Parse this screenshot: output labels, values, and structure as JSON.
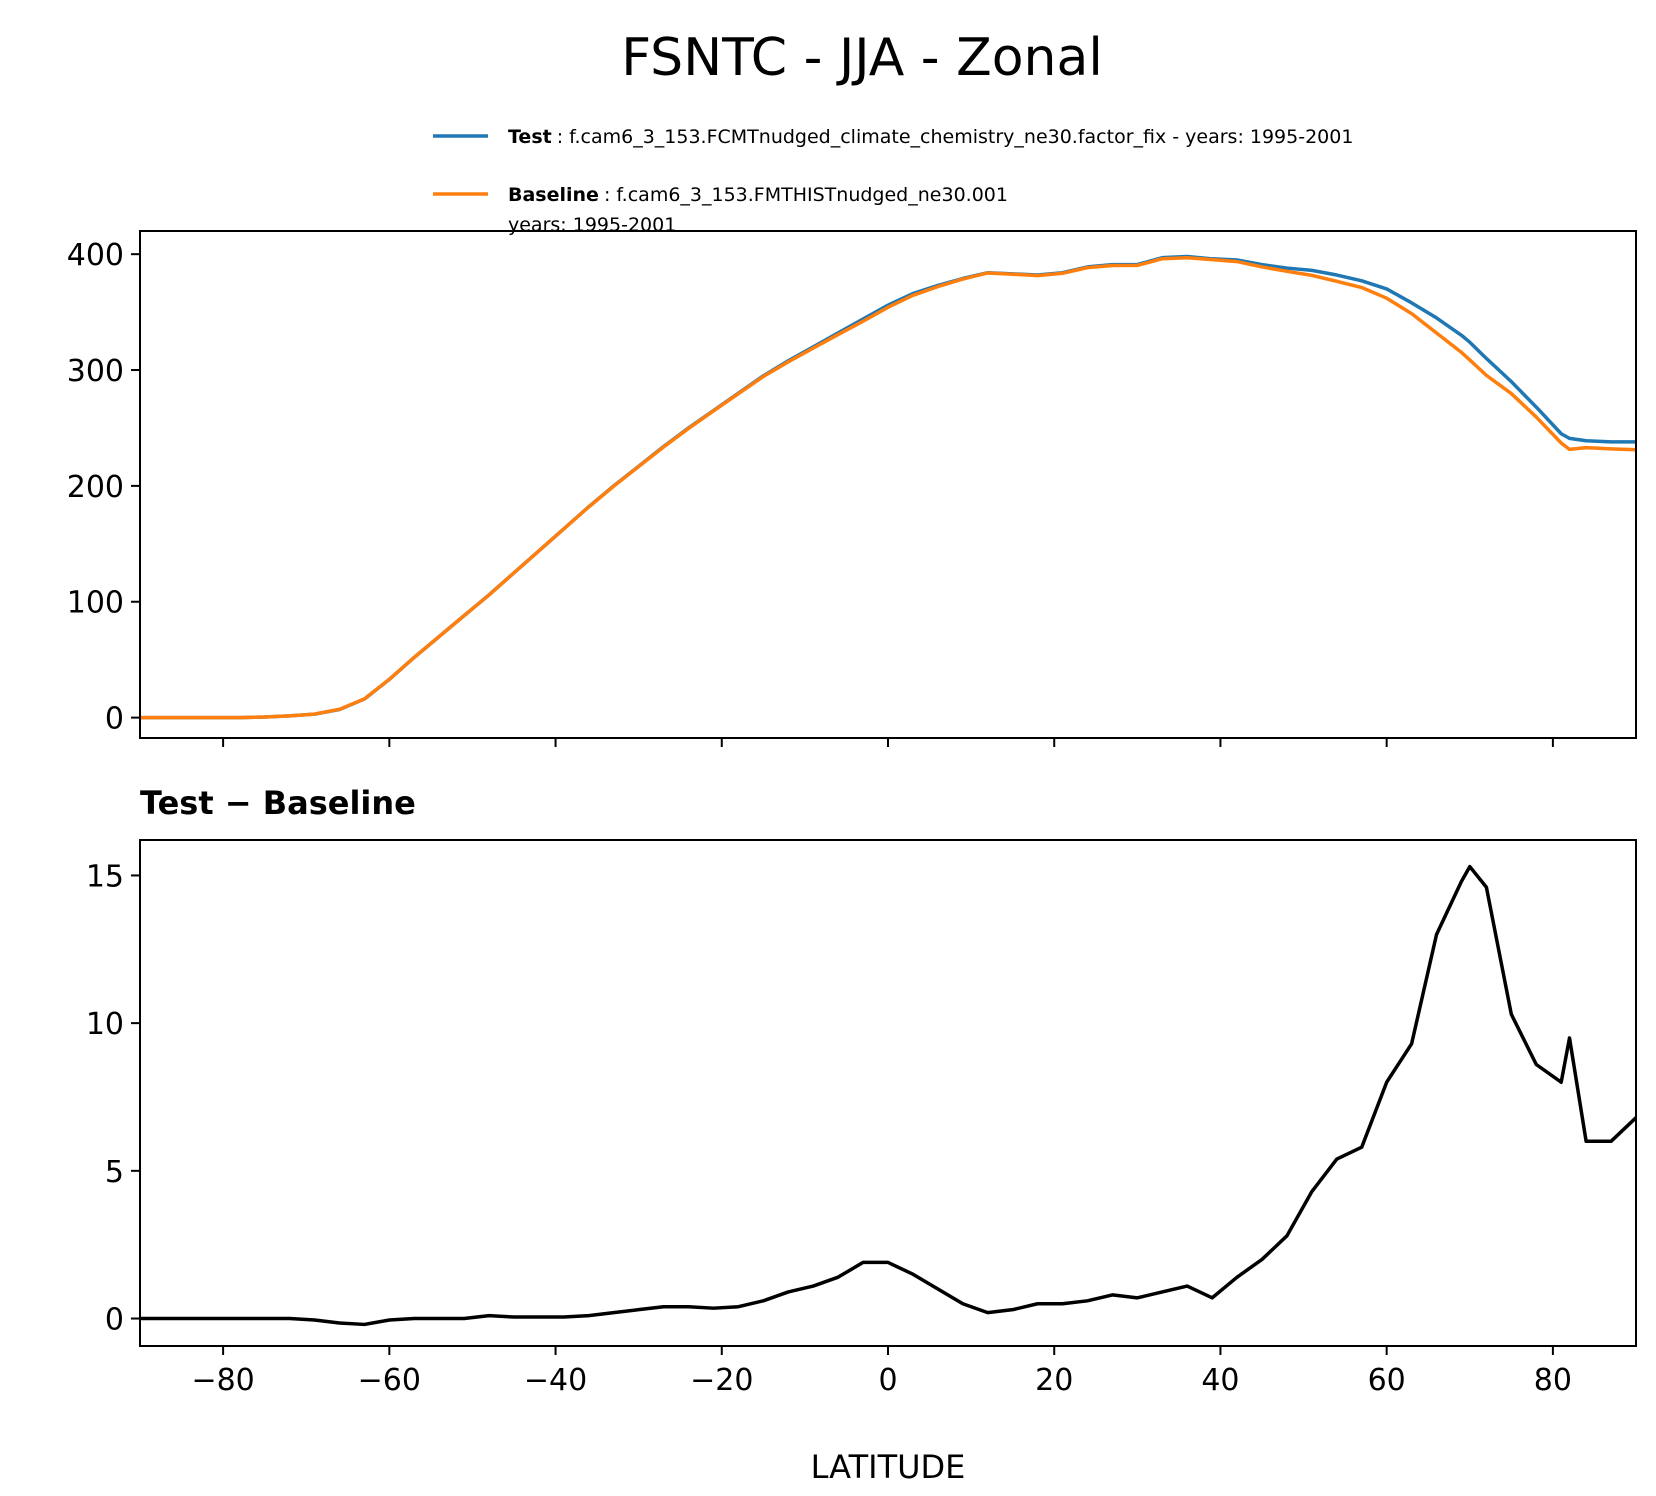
{
  "chart_data": [
    {
      "type": "line",
      "title": "FSNTC - JJA - Zonal",
      "x": [
        -90,
        -87,
        -84,
        -81,
        -78,
        -75,
        -72,
        -69,
        -66,
        -63,
        -60,
        -57,
        -54,
        -51,
        -48,
        -45,
        -42,
        -39,
        -36,
        -33,
        -30,
        -27,
        -24,
        -21,
        -18,
        -15,
        -12,
        -9,
        -6,
        -3,
        0,
        3,
        6,
        9,
        12,
        15,
        18,
        21,
        24,
        27,
        30,
        33,
        36,
        39,
        42,
        45,
        48,
        51,
        54,
        57,
        60,
        63,
        66,
        69,
        70,
        72,
        75,
        78,
        81,
        82,
        84,
        87,
        90
      ],
      "series": [
        {
          "name": "Test",
          "details": [
            ": f.cam6_3_153.FCMTnudged_climate_chemistry_ne30.factor_fix - years: 1995-2001"
          ],
          "color": "#1f77b4",
          "values": [
            0,
            0,
            0,
            0,
            0,
            0.5,
            1.5,
            3,
            7,
            16,
            33,
            52,
            70,
            88,
            106,
            125,
            144,
            163,
            182,
            200,
            217,
            234,
            250,
            265,
            280,
            295,
            308,
            320,
            332,
            344,
            356,
            366,
            373,
            379,
            384,
            383,
            382,
            384,
            389,
            391,
            391,
            397,
            398,
            396,
            395,
            391,
            388,
            386,
            382,
            377,
            370,
            358,
            345,
            330,
            324,
            310,
            290,
            268,
            245,
            241,
            239,
            238,
            238
          ]
        },
        {
          "name": "Baseline",
          "details": [
            ": f.cam6_3_153.FMTHISTnudged_ne30.001",
            "years: 1995-2001"
          ],
          "color": "#ff7f0e",
          "values": [
            0,
            0,
            0,
            0,
            0,
            0.5,
            1.5,
            3.05,
            7.15,
            16.2,
            33.05,
            52,
            70,
            88,
            105.9,
            124.95,
            143.95,
            162.95,
            181.9,
            199.8,
            216.7,
            233.6,
            249.6,
            264.65,
            279.6,
            294.4,
            307.1,
            318.9,
            330.6,
            342.1,
            354.1,
            364.5,
            372,
            378.5,
            383.8,
            382.7,
            381.5,
            383.5,
            388.4,
            390.2,
            390.3,
            396.1,
            396.9,
            395.3,
            393.6,
            389,
            385.2,
            381.7,
            376.6,
            371.2,
            362,
            348.7,
            332,
            315.2,
            308.7,
            295.4,
            279.7,
            259.4,
            237,
            231.5,
            233,
            232,
            231.2
          ]
        }
      ],
      "xlim": [
        -90,
        90
      ],
      "xticks": [
        -80,
        -60,
        -40,
        -20,
        0,
        20,
        40,
        60,
        80
      ],
      "show_xtick_labels": false,
      "ylim": [
        -17.6,
        420
      ],
      "yticks": [
        0,
        100,
        200,
        300,
        400
      ]
    },
    {
      "type": "line",
      "subtitle": "Test − Baseline",
      "xlabel": "LATITUDE",
      "color": "#000000",
      "x": [
        -90,
        -87,
        -84,
        -81,
        -78,
        -75,
        -72,
        -69,
        -66,
        -63,
        -60,
        -57,
        -54,
        -51,
        -48,
        -45,
        -42,
        -39,
        -36,
        -33,
        -30,
        -27,
        -24,
        -21,
        -18,
        -15,
        -12,
        -9,
        -6,
        -3,
        0,
        3,
        6,
        9,
        12,
        15,
        18,
        21,
        24,
        27,
        30,
        33,
        36,
        39,
        42,
        45,
        48,
        51,
        54,
        57,
        60,
        63,
        66,
        69,
        70,
        72,
        75,
        78,
        81,
        82,
        84,
        87,
        90
      ],
      "values": [
        0,
        0,
        0,
        0,
        0,
        0,
        0,
        -0.05,
        -0.15,
        -0.2,
        -0.05,
        0,
        0,
        0,
        0.1,
        0.05,
        0.05,
        0.05,
        0.1,
        0.2,
        0.3,
        0.4,
        0.4,
        0.35,
        0.4,
        0.6,
        0.9,
        1.1,
        1.4,
        1.9,
        1.9,
        1.5,
        1.0,
        0.5,
        0.2,
        0.3,
        0.5,
        0.5,
        0.6,
        0.8,
        0.7,
        0.9,
        1.1,
        0.7,
        1.4,
        2.0,
        2.8,
        4.3,
        5.4,
        5.8,
        8.0,
        9.3,
        13.0,
        14.8,
        15.3,
        14.6,
        10.3,
        8.6,
        8.0,
        9.5,
        6.0,
        6.0,
        6.8
      ],
      "xlim": [
        -90,
        90
      ],
      "xticks": [
        {
          "value": -80,
          "label": "−80"
        },
        {
          "value": -60,
          "label": "−60"
        },
        {
          "value": -40,
          "label": "−40"
        },
        {
          "value": -20,
          "label": "−20"
        },
        0,
        20,
        40,
        60,
        80
      ],
      "show_xtick_labels": true,
      "ylim": [
        -0.93,
        16.2
      ],
      "yticks": [
        0,
        5,
        10,
        15
      ]
    }
  ]
}
